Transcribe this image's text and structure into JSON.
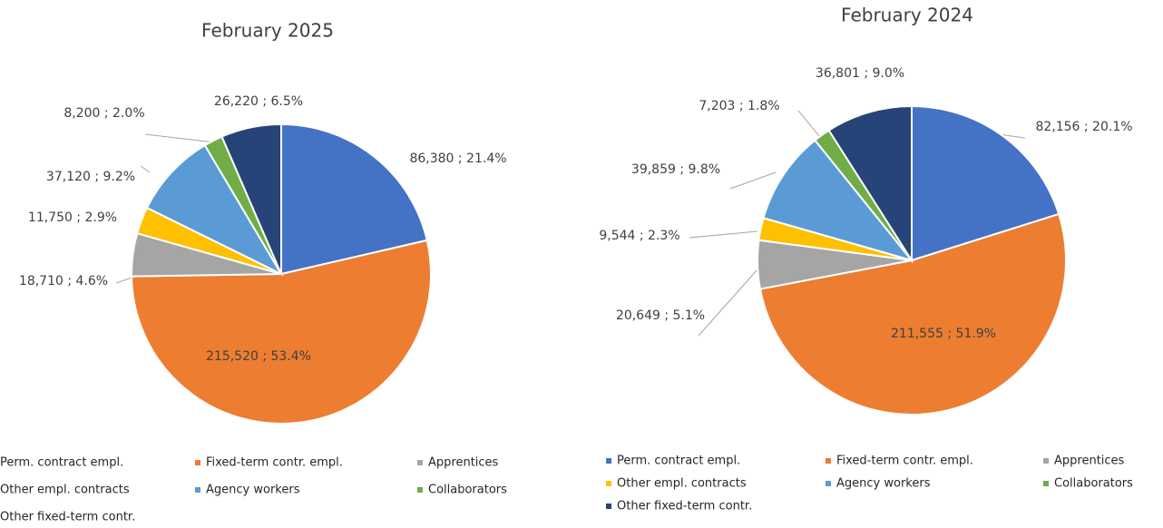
{
  "chart_data": [
    {
      "type": "pie",
      "title": "February 2025",
      "categories": [
        "Perm. contract empl.",
        "Fixed-term contr. empl.",
        "Apprentices",
        "Other empl. contracts",
        "Agency workers",
        "Collaborators",
        "Other fixed-term contr."
      ],
      "values": [
        86380,
        215520,
        18710,
        11750,
        37120,
        8200,
        26220
      ],
      "value_labels": [
        "86,380 ; 21.4%",
        "215,520 ; 53.4%",
        "18,710 ; 4.6%",
        "11,750 ; 2.9%",
        "37,120 ; 9.2%",
        "8,200 ; 2.0%",
        "26,220 ; 6.5%"
      ],
      "colors": [
        "#4472c4",
        "#ed7d31",
        "#a5a5a5",
        "#ffc000",
        "#5b9bd5",
        "#70ad47",
        "#264478"
      ],
      "legend": "bottom"
    },
    {
      "type": "pie",
      "title": "February 2024",
      "categories": [
        "Perm. contract empl.",
        "Fixed-term contr. empl.",
        "Apprentices",
        "Other empl. contracts",
        "Agency workers",
        "Collaborators",
        "Other fixed-term contr."
      ],
      "values": [
        82156,
        211555,
        20649,
        9544,
        39859,
        7203,
        36801
      ],
      "value_labels": [
        "82,156 ; 20.1%",
        "211,555 ; 51.9%",
        "20,649 ; 5.1%",
        "9,544 ; 2.3%",
        "39,859 ; 9.8%",
        "7,203 ; 1.8%",
        "36,801 ; 9.0%"
      ],
      "colors": [
        "#4472c4",
        "#ed7d31",
        "#a5a5a5",
        "#ffc000",
        "#5b9bd5",
        "#70ad47",
        "#264478"
      ],
      "legend": "bottom"
    }
  ]
}
